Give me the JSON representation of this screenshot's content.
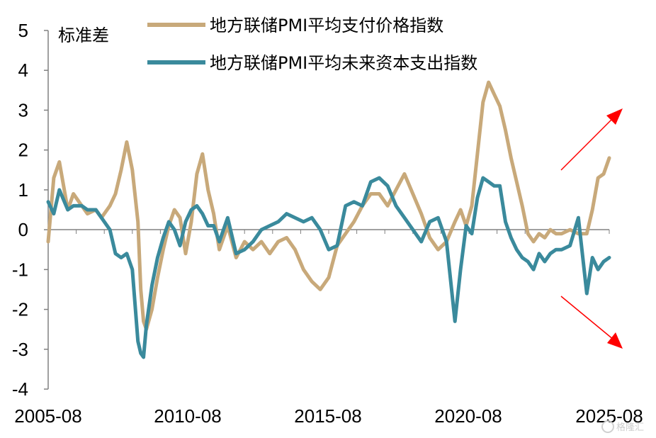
{
  "chart_data": {
    "type": "line",
    "ylabel": "标准差",
    "ylim": [
      -4,
      5
    ],
    "yticks": [
      "5",
      "4",
      "3",
      "2",
      "1",
      "0",
      "-1",
      "-2",
      "-3",
      "-4"
    ],
    "xticks": [
      "2005-08",
      "2010-08",
      "2015-08",
      "2020-08",
      "2025-08"
    ],
    "xlim": [
      2005.6,
      2025.6
    ],
    "grid": false,
    "legend_position": "top",
    "annotations": [
      "red arrow pointing up-right",
      "red arrow pointing down-right"
    ],
    "series": [
      {
        "name": "地方联储PMI平均支付价格指数",
        "color": "#C8A97A",
        "x": [
          2005.6,
          2005.8,
          2006.0,
          2006.3,
          2006.5,
          2006.8,
          2007.0,
          2007.3,
          2007.5,
          2007.8,
          2008.0,
          2008.2,
          2008.4,
          2008.6,
          2008.8,
          2008.9,
          2009.0,
          2009.1,
          2009.3,
          2009.5,
          2009.7,
          2009.9,
          2010.1,
          2010.3,
          2010.5,
          2010.7,
          2010.9,
          2011.1,
          2011.3,
          2011.5,
          2011.7,
          2012.0,
          2012.3,
          2012.6,
          2012.9,
          2013.2,
          2013.5,
          2013.8,
          2014.1,
          2014.4,
          2014.7,
          2015.0,
          2015.3,
          2015.6,
          2015.9,
          2016.2,
          2016.5,
          2016.8,
          2017.1,
          2017.4,
          2017.7,
          2018.0,
          2018.3,
          2018.6,
          2018.9,
          2019.2,
          2019.5,
          2019.8,
          2020.1,
          2020.3,
          2020.5,
          2020.7,
          2020.9,
          2021.1,
          2021.3,
          2021.5,
          2021.7,
          2021.9,
          2022.1,
          2022.3,
          2022.5,
          2022.7,
          2022.9,
          2023.1,
          2023.3,
          2023.5,
          2023.7,
          2023.9,
          2024.2,
          2024.5,
          2024.8,
          2025.0,
          2025.2,
          2025.4,
          2025.6
        ],
        "y": [
          -0.3,
          1.3,
          1.7,
          0.5,
          0.9,
          0.6,
          0.4,
          0.5,
          0.3,
          0.6,
          0.9,
          1.5,
          2.2,
          1.5,
          0.2,
          -1.5,
          -2.3,
          -2.5,
          -2.0,
          -1.2,
          -0.5,
          0.1,
          0.5,
          0.3,
          -0.6,
          0.2,
          1.4,
          1.9,
          1.0,
          0.4,
          -0.5,
          0.1,
          -0.7,
          -0.3,
          -0.5,
          -0.3,
          -0.6,
          -0.3,
          -0.2,
          -0.5,
          -1.0,
          -1.3,
          -1.5,
          -1.2,
          -0.4,
          -0.1,
          0.2,
          0.6,
          0.9,
          0.9,
          0.6,
          1.0,
          1.4,
          0.9,
          0.4,
          -0.2,
          -0.5,
          -0.3,
          0.2,
          0.5,
          0.1,
          0.6,
          1.9,
          3.2,
          3.7,
          3.4,
          3.1,
          2.5,
          1.8,
          1.2,
          0.6,
          -0.1,
          -0.3,
          -0.1,
          -0.2,
          0.0,
          -0.1,
          -0.1,
          0.0,
          -0.1,
          -0.1,
          0.5,
          1.3,
          1.4,
          1.8
        ]
      },
      {
        "name": "地方联储PMI平均未来资本支出指数",
        "color": "#3A8A9C",
        "x": [
          2005.6,
          2005.8,
          2006.0,
          2006.3,
          2006.5,
          2006.8,
          2007.0,
          2007.3,
          2007.5,
          2007.8,
          2008.0,
          2008.2,
          2008.4,
          2008.6,
          2008.8,
          2008.9,
          2009.0,
          2009.1,
          2009.3,
          2009.5,
          2009.7,
          2009.9,
          2010.1,
          2010.3,
          2010.5,
          2010.7,
          2010.9,
          2011.1,
          2011.3,
          2011.5,
          2011.7,
          2012.0,
          2012.3,
          2012.6,
          2012.9,
          2013.2,
          2013.5,
          2013.8,
          2014.1,
          2014.4,
          2014.7,
          2015.0,
          2015.3,
          2015.6,
          2015.9,
          2016.2,
          2016.5,
          2016.8,
          2017.1,
          2017.4,
          2017.7,
          2018.0,
          2018.3,
          2018.6,
          2018.9,
          2019.2,
          2019.5,
          2019.8,
          2020.1,
          2020.3,
          2020.5,
          2020.7,
          2020.9,
          2021.1,
          2021.3,
          2021.5,
          2021.7,
          2021.9,
          2022.1,
          2022.3,
          2022.5,
          2022.7,
          2022.9,
          2023.1,
          2023.3,
          2023.5,
          2023.7,
          2023.9,
          2024.2,
          2024.5,
          2024.8,
          2025.0,
          2025.2,
          2025.4,
          2025.6
        ],
        "y": [
          0.7,
          0.4,
          1.0,
          0.5,
          0.6,
          0.6,
          0.5,
          0.5,
          0.3,
          0.0,
          -0.6,
          -0.7,
          -0.6,
          -1.0,
          -2.8,
          -3.1,
          -3.2,
          -2.4,
          -1.4,
          -0.7,
          -0.2,
          0.2,
          0.0,
          -0.4,
          0.2,
          0.5,
          0.6,
          0.4,
          0.1,
          0.1,
          -0.3,
          0.3,
          -0.6,
          -0.5,
          -0.3,
          0.0,
          0.1,
          0.2,
          0.4,
          0.3,
          0.2,
          0.3,
          0.0,
          -0.5,
          -0.4,
          0.6,
          0.7,
          0.6,
          1.2,
          1.3,
          1.1,
          0.6,
          0.3,
          0.0,
          -0.3,
          0.2,
          0.3,
          -0.3,
          -2.3,
          -1.0,
          0.1,
          -0.1,
          0.8,
          1.3,
          1.2,
          1.1,
          1.1,
          0.2,
          -0.2,
          -0.5,
          -0.7,
          -0.8,
          -1.0,
          -0.6,
          -0.8,
          -0.6,
          -0.5,
          -0.5,
          -0.4,
          0.3,
          -1.6,
          -0.7,
          -1.0,
          -0.8,
          -0.7
        ]
      }
    ]
  },
  "watermark": "格隆汇"
}
